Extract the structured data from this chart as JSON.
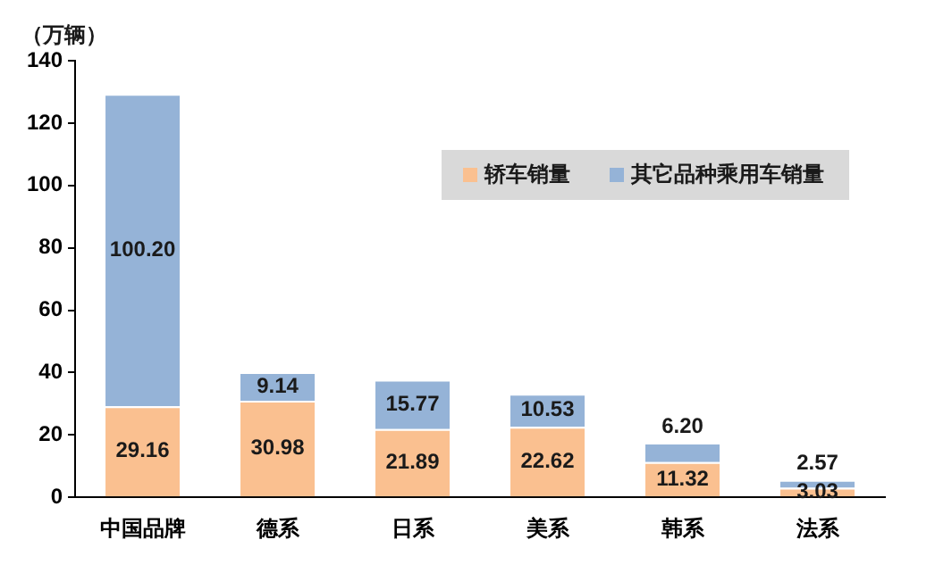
{
  "chart_data": {
    "type": "bar",
    "stacked": true,
    "ylabel": "（万辆）",
    "categories": [
      "中国品牌",
      "德系",
      "日系",
      "美系",
      "韩系",
      "法系"
    ],
    "series": [
      {
        "name": "轿车销量",
        "color": "#fac090",
        "values": [
          29.16,
          30.98,
          21.89,
          22.62,
          11.32,
          3.03
        ],
        "value_labels": [
          "29.16",
          "30.98",
          "21.89",
          "22.62",
          "11.32",
          "3.03"
        ]
      },
      {
        "name": "其它品种乘用车销量",
        "color": "#95b3d7",
        "values": [
          100.2,
          9.14,
          15.77,
          10.53,
          6.2,
          2.57
        ],
        "value_labels": [
          "100.20",
          "9.14",
          "15.77",
          "10.53",
          "6.20",
          "2.57"
        ]
      }
    ],
    "ylim": [
      0,
      140
    ],
    "yticks": [
      0,
      20,
      40,
      60,
      80,
      100,
      120,
      140
    ],
    "grid": false,
    "legend": "top right"
  }
}
